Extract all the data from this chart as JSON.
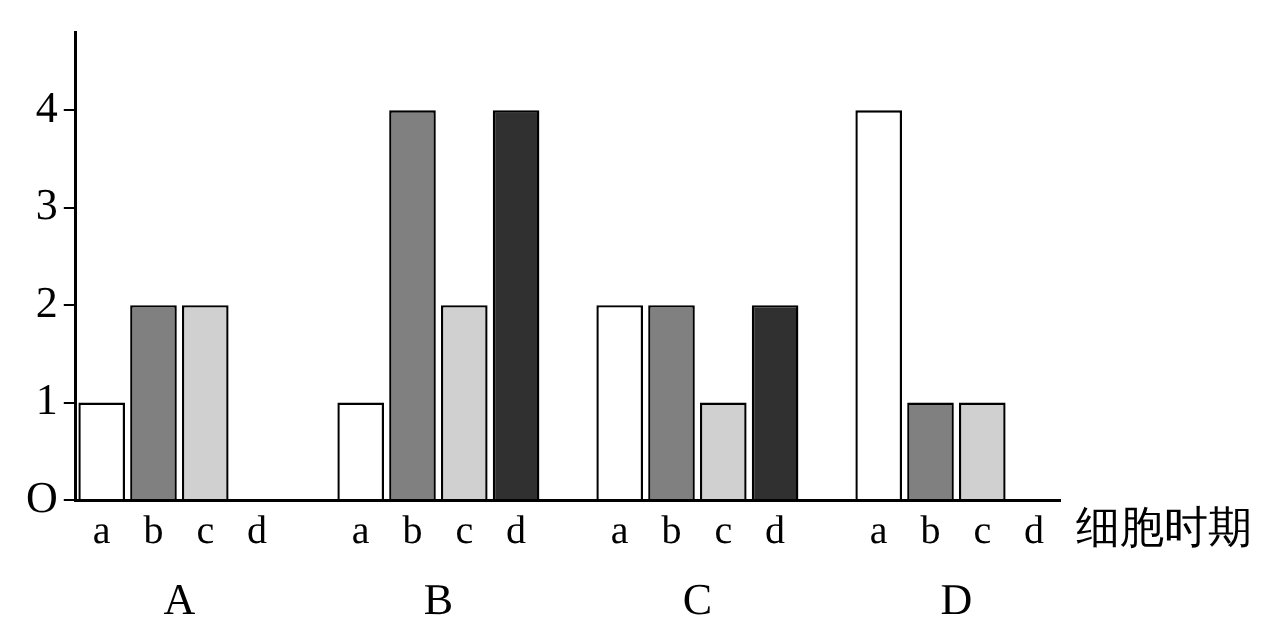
{
  "chart_data": {
    "type": "bar",
    "xlabel": "细胞时期",
    "categories": [
      "a",
      "b",
      "c",
      "d",
      null,
      "a",
      "b",
      "c",
      "d",
      null,
      "a",
      "b",
      "c",
      "d",
      null,
      "a",
      "b",
      "c",
      "d"
    ],
    "values": [
      1,
      2,
      2,
      null,
      null,
      1,
      4,
      2,
      4,
      null,
      2,
      2,
      1,
      2,
      null,
      4,
      1,
      1,
      null
    ],
    "colors": [
      "#ffffff",
      "#808080",
      "#d0d0d0",
      "#303030",
      "#ffffff",
      "#ffffff",
      "#808080",
      "#d0d0d0",
      "#303030",
      "#ffffff",
      "#ffffff",
      "#808080",
      "#d0d0d0",
      "#303030",
      "#ffffff",
      "#ffffff",
      "#808080",
      "#d0d0d0",
      "#303030"
    ],
    "annotations": [
      "A",
      "B",
      "C",
      "D"
    ],
    "ylim": [
      0,
      4.8
    ],
    "yticks": [
      {
        "value": 0,
        "label": "O"
      },
      1,
      2,
      3,
      4
    ],
    "grid": false
  }
}
